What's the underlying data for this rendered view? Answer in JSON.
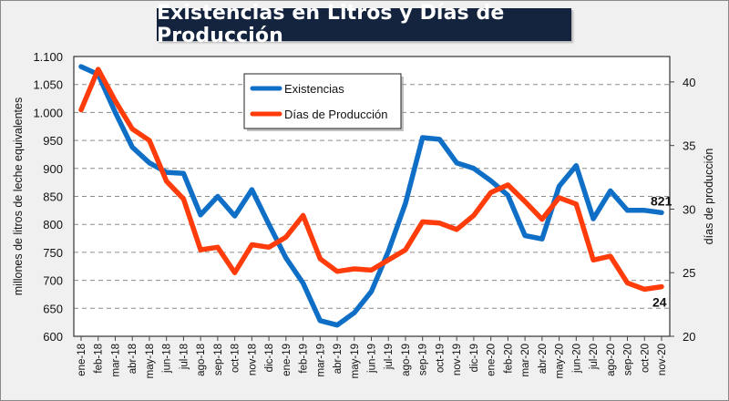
{
  "chart_data": {
    "type": "line",
    "title": "Existencias en Litros y Días de Producción",
    "xlabel": "",
    "ylabel": "millones de litros de leche equivalentes",
    "y2label": "días de producción",
    "ylim": [
      600,
      1100
    ],
    "y2lim": [
      20,
      42
    ],
    "yticks": [
      "600",
      "650",
      "700",
      "750",
      "800",
      "850",
      "900",
      "950",
      "1.000",
      "1.050",
      "1.100"
    ],
    "ytick_values": [
      600,
      650,
      700,
      750,
      800,
      850,
      900,
      950,
      1000,
      1050,
      1100
    ],
    "y2ticks": [
      "20",
      "25",
      "30",
      "35",
      "40"
    ],
    "y2tick_values": [
      20,
      25,
      30,
      35,
      40
    ],
    "grid": true,
    "legend_position": "top-center",
    "categories": [
      "ene-18",
      "feb-18",
      "mar-18",
      "abr-18",
      "may-18",
      "jun-18",
      "jul-18",
      "ago-18",
      "sep-18",
      "oct-18",
      "nov-18",
      "dic-18",
      "ene-19",
      "feb-19",
      "mar-19",
      "abr-19",
      "may-19",
      "jun-19",
      "jul-19",
      "ago-19",
      "sep-19",
      "oct-19",
      "nov-19",
      "dic-19",
      "ene-20",
      "feb-20",
      "mar-20",
      "abr-20",
      "may-20",
      "jun-20",
      "jul-20",
      "ago-20",
      "sep-20",
      "oct-20",
      "nov-20"
    ],
    "series": [
      {
        "name": "Existencias",
        "axis": "left",
        "color": "#0f6fc6",
        "values": [
          1082,
          1068,
          1000,
          938,
          910,
          893,
          891,
          817,
          850,
          815,
          862,
          800,
          740,
          695,
          628,
          620,
          642,
          680,
          752,
          838,
          955,
          952,
          910,
          900,
          878,
          852,
          780,
          774,
          868,
          905,
          810,
          860,
          825,
          825,
          821
        ],
        "end_label": "821"
      },
      {
        "name": "Días de Producción",
        "axis": "right",
        "color": "#ff3c0a",
        "values": [
          37.8,
          41.0,
          38.5,
          36.3,
          35.4,
          32.2,
          30.8,
          26.8,
          27.0,
          25.0,
          27.2,
          27.0,
          27.8,
          29.5,
          26.1,
          25.1,
          25.3,
          25.2,
          26.0,
          26.8,
          29.0,
          28.9,
          28.4,
          29.5,
          31.3,
          31.9,
          30.6,
          29.2,
          30.9,
          30.4,
          26.0,
          26.3,
          24.2,
          23.7,
          23.9
        ],
        "end_label": "24"
      }
    ]
  }
}
